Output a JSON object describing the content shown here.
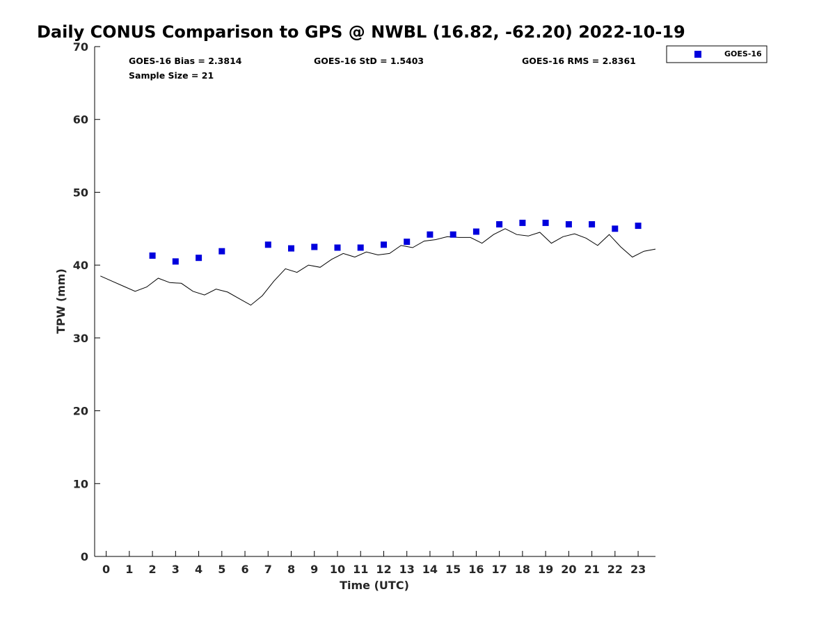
{
  "chart_data": {
    "type": "scatter",
    "title": "Daily CONUS Comparison to GPS @ NWBL (16.82, -62.20) 2022-10-19",
    "xlabel": "Time (UTC)",
    "ylabel": "TPW (mm)",
    "xlim": [
      -0.5,
      23.75
    ],
    "ylim": [
      0,
      70
    ],
    "xticks": [
      0,
      1,
      2,
      3,
      4,
      5,
      6,
      7,
      8,
      9,
      10,
      11,
      12,
      13,
      14,
      15,
      16,
      17,
      18,
      19,
      20,
      21,
      22,
      23
    ],
    "yticks": [
      0,
      10,
      20,
      30,
      40,
      50,
      60,
      70
    ],
    "grid": false,
    "legend_position": "outside-top-right",
    "stats": {
      "bias": "GOES-16 Bias = 2.3814",
      "std": "GOES-16 StD = 1.5403",
      "rms": "GOES-16 RMS = 2.8361",
      "sample": "Sample Size = 21"
    },
    "series": [
      {
        "name": "GOES-16",
        "kind": "scatter",
        "marker": "square",
        "color": "#0000dd",
        "x": [
          2,
          3,
          4,
          5,
          7,
          8,
          9,
          10,
          11,
          12,
          13,
          14,
          15,
          16,
          17,
          18,
          19,
          20,
          21,
          22,
          23
        ],
        "y": [
          41.3,
          40.5,
          41.0,
          41.9,
          42.8,
          42.3,
          42.5,
          42.4,
          42.4,
          42.8,
          43.2,
          44.2,
          44.2,
          44.6,
          45.6,
          45.8,
          45.8,
          45.6,
          45.6,
          45.0,
          45.4
        ]
      },
      {
        "kind": "line",
        "color": "#000000",
        "x": [
          -0.25,
          0.25,
          0.75,
          1.25,
          1.75,
          2.25,
          2.75,
          3.25,
          3.75,
          4.25,
          4.75,
          5.25,
          5.75,
          6.25,
          6.75,
          7.25,
          7.75,
          8.25,
          8.75,
          9.25,
          9.75,
          10.25,
          10.75,
          11.25,
          11.75,
          12.25,
          12.75,
          13.25,
          13.75,
          14.25,
          14.75,
          15.25,
          15.75,
          16.25,
          16.75,
          17.25,
          17.75,
          18.25,
          18.75,
          19.25,
          19.75,
          20.25,
          20.75,
          21.25,
          21.75,
          22.25,
          22.75,
          23.25,
          23.75
        ],
        "y": [
          38.5,
          37.8,
          37.1,
          36.4,
          37.0,
          38.2,
          37.6,
          37.5,
          36.4,
          35.9,
          36.7,
          36.3,
          35.4,
          34.5,
          35.8,
          37.8,
          39.5,
          39.0,
          40.0,
          39.7,
          40.8,
          41.6,
          41.1,
          41.8,
          41.4,
          41.6,
          42.7,
          42.4,
          43.3,
          43.5,
          43.9,
          43.8,
          43.8,
          43.0,
          44.2,
          45.0,
          44.2,
          44.0,
          44.5,
          43.0,
          43.9,
          44.3,
          43.7,
          42.7,
          44.2,
          42.5,
          41.1,
          41.9,
          42.2
        ]
      }
    ]
  }
}
